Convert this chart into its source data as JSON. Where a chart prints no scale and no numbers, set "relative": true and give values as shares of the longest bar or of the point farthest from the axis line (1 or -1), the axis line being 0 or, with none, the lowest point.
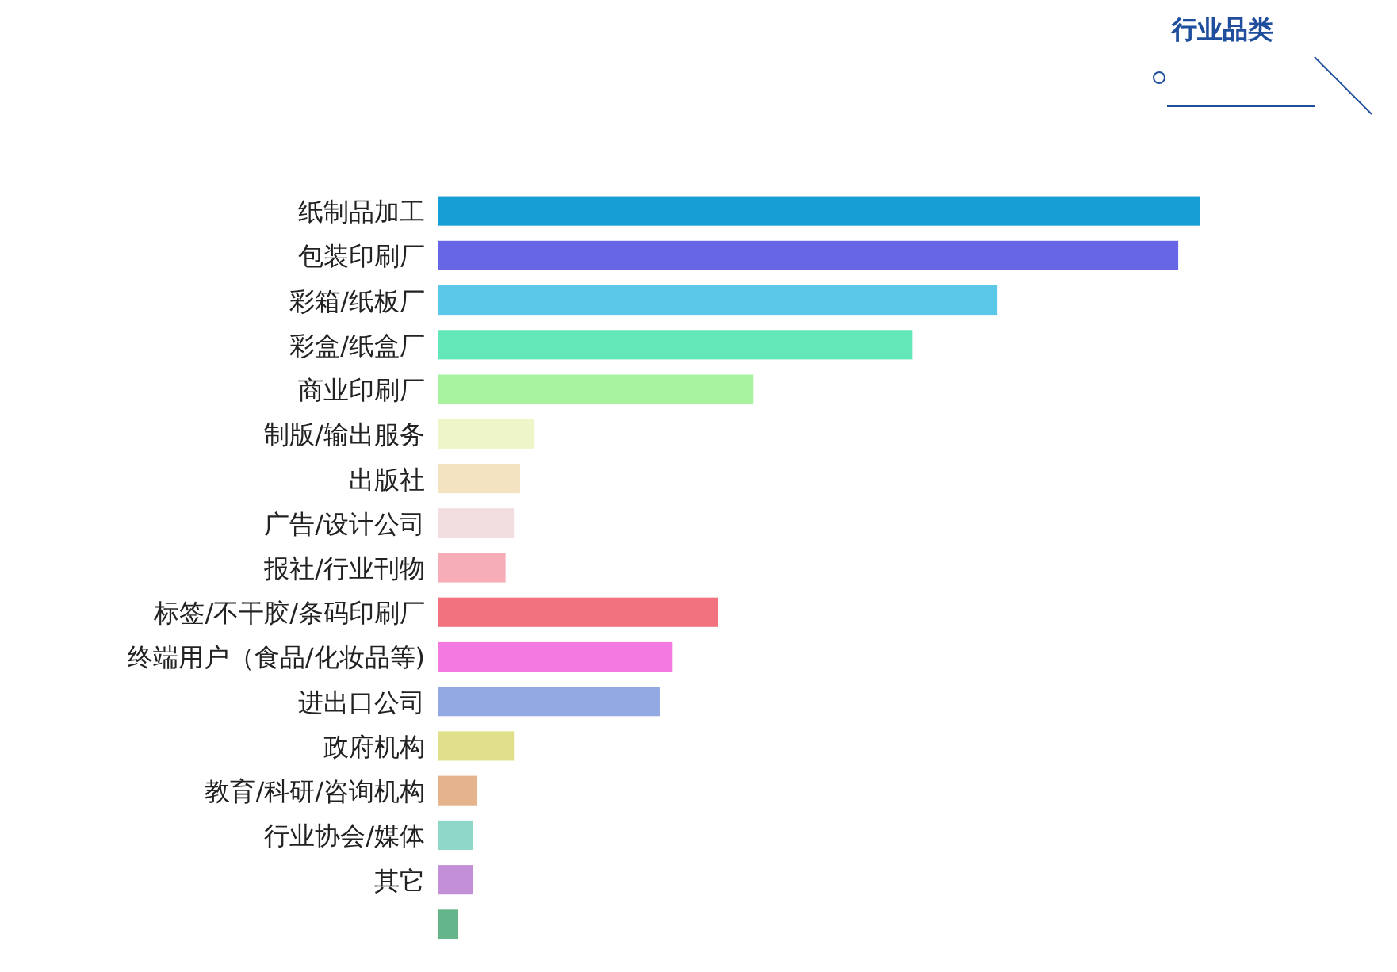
{
  "chart_data": {
    "type": "bar",
    "orientation": "horizontal",
    "relative": true,
    "title": "行业品类",
    "categories": [
      "纸制品加工",
      "包装印刷厂",
      "彩箱/纸板厂",
      "彩盒/纸盒厂",
      "商业印刷厂",
      "制版/输出服务",
      "出版社",
      "广告/设计公司",
      "报社/行业刊物",
      "标签/不干胶/条码印刷厂",
      "终端用户（食品/化妆品等)",
      "进出口公司",
      "政府机构",
      "教育/科研/咨询机构",
      "行业协会/媒体",
      "其它",
      null
    ],
    "values": [
      1,
      0.971,
      0.734,
      0.622,
      0.414,
      0.127,
      0.108,
      0.1,
      0.089,
      0.368,
      0.308,
      0.291,
      0.1,
      0.052,
      0.046,
      0.046,
      0.027
    ],
    "colors": [
      "#159fd4",
      "#6766e6",
      "#5bc8ea",
      "#63e6b8",
      "#a8f3a0",
      "#eef5c8",
      "#f3e3c0",
      "#f2dde1",
      "#f7adb8",
      "#f2737f",
      "#f27ae0",
      "#93a9e3",
      "#e0e08a",
      "#e6b48c",
      "#8fd8c9",
      "#c390d8",
      "#64b58a"
    ],
    "legend": false
  }
}
